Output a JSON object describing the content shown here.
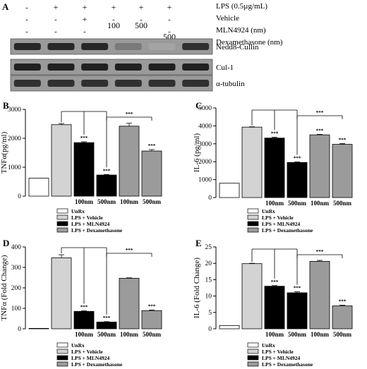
{
  "panel_a": {
    "letter": "A",
    "conditions": [
      {
        "label": "LPS (0.5µg/mL)",
        "values": [
          "-",
          "+",
          "+",
          "+",
          "+",
          "+"
        ]
      },
      {
        "label": "Vehicle",
        "values": [
          "-",
          "-",
          "+",
          "-",
          "-",
          "-"
        ]
      },
      {
        "label": "MLN4924 (nm)",
        "values": [
          "-",
          "-",
          "-",
          "100",
          "500",
          "-"
        ]
      },
      {
        "label": "Dexamethasone (nm)",
        "values": [
          "-",
          "-",
          "-",
          "-",
          "-",
          "500"
        ]
      }
    ],
    "blots": [
      {
        "label": "Nedd8-Cullin",
        "intensity": [
          0.85,
          0.85,
          0.85,
          0.35,
          0.1,
          0.8
        ]
      },
      {
        "label": "Cul-1",
        "intensity": [
          0.9,
          0.9,
          0.9,
          0.9,
          0.9,
          0.9
        ]
      },
      {
        "label": "α-tubulin",
        "intensity": [
          0.8,
          0.8,
          0.8,
          0.8,
          0.8,
          0.8
        ]
      }
    ]
  },
  "legend": [
    {
      "label": "UnRx",
      "color": "#ffffff"
    },
    {
      "label": "LPS + Vehicle",
      "color": "#d3d3d3"
    },
    {
      "label": "LPS + MLN4924",
      "color": "#000000"
    },
    {
      "label": "LPS + Dexamethasone",
      "color": "#9b9b9b"
    }
  ],
  "significance": "***",
  "chart_data": [
    {
      "type": "bar",
      "panel": "B",
      "ylabel": "TNFα(pg/ml)",
      "ylim": [
        0,
        3000
      ],
      "yticks": [
        0,
        1000,
        2000,
        3000
      ],
      "categories": [
        "",
        "",
        "100nm",
        "500nm",
        "100nm",
        "500nm"
      ],
      "values": [
        620,
        2470,
        1850,
        730,
        2420,
        1560
      ],
      "errors": [
        0,
        40,
        30,
        20,
        100,
        50
      ],
      "colors": [
        "#ffffff",
        "#d3d3d3",
        "#000000",
        "#000000",
        "#9b9b9b",
        "#9b9b9b"
      ],
      "stars": [
        false,
        false,
        true,
        true,
        false,
        true
      ]
    },
    {
      "type": "bar",
      "panel": "C",
      "ylabel": "IL-6 (pg/ml)",
      "ylim": [
        0,
        5000
      ],
      "yticks": [
        0,
        1000,
        2000,
        3000,
        4000,
        5000
      ],
      "categories": [
        "",
        "",
        "100nm",
        "500nm",
        "100nm",
        "500nm"
      ],
      "values": [
        800,
        3930,
        3320,
        1960,
        3500,
        2970
      ],
      "errors": [
        0,
        20,
        50,
        30,
        30,
        40
      ],
      "colors": [
        "#ffffff",
        "#d3d3d3",
        "#000000",
        "#000000",
        "#9b9b9b",
        "#9b9b9b"
      ],
      "stars": [
        false,
        false,
        true,
        true,
        true,
        true
      ]
    },
    {
      "type": "bar",
      "panel": "D",
      "ylabel": "TNFα (Fold Change)",
      "ylim": [
        0,
        400
      ],
      "yticks": [
        0,
        100,
        200,
        300,
        400
      ],
      "categories": [
        "",
        "",
        "100nm",
        "500nm",
        "100nm",
        "500nm"
      ],
      "values": [
        2,
        347,
        85,
        33,
        247,
        89
      ],
      "errors": [
        0,
        15,
        3,
        2,
        2,
        3
      ],
      "colors": [
        "#ffffff",
        "#d3d3d3",
        "#000000",
        "#000000",
        "#9b9b9b",
        "#9b9b9b"
      ],
      "stars": [
        false,
        false,
        true,
        true,
        false,
        true
      ]
    },
    {
      "type": "bar",
      "panel": "E",
      "ylabel": "IL-6 (Fold Change)",
      "ylim": [
        0,
        25
      ],
      "yticks": [
        0,
        5,
        10,
        15,
        20,
        25
      ],
      "categories": [
        "",
        "",
        "100nm",
        "500nm",
        "100nm",
        "500nm"
      ],
      "values": [
        1,
        19.9,
        13,
        11,
        20.6,
        7
      ],
      "errors": [
        0,
        0.1,
        0.2,
        0.3,
        0.3,
        0.2
      ],
      "colors": [
        "#ffffff",
        "#d3d3d3",
        "#000000",
        "#000000",
        "#9b9b9b",
        "#9b9b9b"
      ],
      "stars": [
        false,
        false,
        true,
        true,
        false,
        true
      ]
    }
  ]
}
